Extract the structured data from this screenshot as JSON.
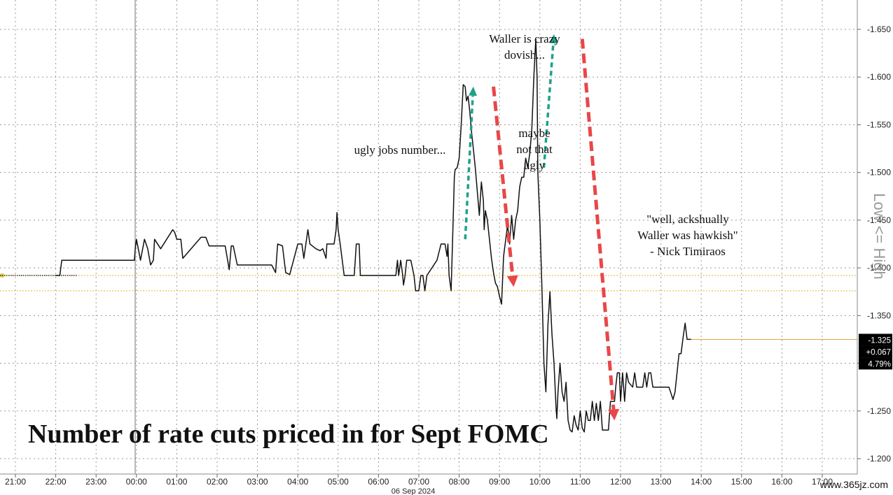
{
  "chart_data": {
    "type": "line",
    "title": "Number of rate cuts priced in for Sept FOMC",
    "date_label": "06 Sep 2024",
    "right_axis_label": "Low <= High",
    "x_ticks": [
      "21:00",
      "22:00",
      "23:00",
      "00:00",
      "01:00",
      "02:00",
      "03:00",
      "04:00",
      "05:00",
      "06:00",
      "07:00",
      "08:00",
      "09:00",
      "10:00",
      "11:00",
      "12:00",
      "13:00",
      "14:00",
      "15:00",
      "16:00",
      "17:00"
    ],
    "y_ticks": [
      "-1.650",
      "-1.600",
      "-1.550",
      "-1.500",
      "-1.450",
      "-1.400",
      "-1.350",
      "-1.300",
      "-1.250",
      "-1.200"
    ],
    "ylim": [
      -1.19,
      -1.665
    ],
    "grid": true,
    "reference_lines": [
      -1.392,
      -1.376
    ],
    "series": [
      {
        "color": "#111111",
        "points": [
          [
            1.0,
            -1.392
          ],
          [
            1.1,
            -1.392
          ],
          [
            1.15,
            -1.408
          ],
          [
            2.95,
            -1.408
          ],
          [
            2.97,
            -1.42
          ],
          [
            3.0,
            -1.43
          ],
          [
            3.1,
            -1.408
          ],
          [
            3.2,
            -1.43
          ],
          [
            3.28,
            -1.42
          ],
          [
            3.35,
            -1.403
          ],
          [
            3.42,
            -1.408
          ],
          [
            3.45,
            -1.43
          ],
          [
            3.6,
            -1.42
          ],
          [
            3.9,
            -1.44
          ],
          [
            3.95,
            -1.437
          ],
          [
            4.0,
            -1.43
          ],
          [
            4.1,
            -1.43
          ],
          [
            4.15,
            -1.41
          ],
          [
            4.6,
            -1.432
          ],
          [
            4.72,
            -1.432
          ],
          [
            4.8,
            -1.423
          ],
          [
            5.2,
            -1.423
          ],
          [
            5.3,
            -1.398
          ],
          [
            5.35,
            -1.423
          ],
          [
            5.4,
            -1.423
          ],
          [
            5.5,
            -1.403
          ],
          [
            6.35,
            -1.403
          ],
          [
            6.45,
            -1.395
          ],
          [
            6.5,
            -1.425
          ],
          [
            6.62,
            -1.423
          ],
          [
            6.7,
            -1.395
          ],
          [
            6.8,
            -1.393
          ],
          [
            7.0,
            -1.425
          ],
          [
            7.1,
            -1.425
          ],
          [
            7.15,
            -1.41
          ],
          [
            7.2,
            -1.425
          ],
          [
            7.25,
            -1.44
          ],
          [
            7.3,
            -1.425
          ],
          [
            7.45,
            -1.42
          ],
          [
            7.55,
            -1.418
          ],
          [
            7.62,
            -1.42
          ],
          [
            7.7,
            -1.41
          ],
          [
            7.72,
            -1.425
          ],
          [
            7.8,
            -1.425
          ],
          [
            7.9,
            -1.425
          ],
          [
            7.95,
            -1.44
          ],
          [
            7.97,
            -1.458
          ],
          [
            8.0,
            -1.44
          ],
          [
            8.05,
            -1.425
          ],
          [
            8.15,
            -1.392
          ],
          [
            8.4,
            -1.392
          ],
          [
            8.45,
            -1.425
          ],
          [
            8.52,
            -1.425
          ],
          [
            8.55,
            -1.392
          ],
          [
            9.0,
            -1.392
          ],
          [
            9.35,
            -1.392
          ],
          [
            9.43,
            -1.392
          ],
          [
            9.47,
            -1.408
          ],
          [
            9.5,
            -1.392
          ],
          [
            9.55,
            -1.408
          ],
          [
            9.6,
            -1.392
          ],
          [
            9.62,
            -1.382
          ],
          [
            9.66,
            -1.392
          ],
          [
            9.7,
            -1.408
          ],
          [
            9.8,
            -1.408
          ],
          [
            9.85,
            -1.398
          ],
          [
            9.88,
            -1.392
          ],
          [
            9.92,
            -1.376
          ],
          [
            10.0,
            -1.376
          ],
          [
            10.05,
            -1.392
          ],
          [
            10.1,
            -1.392
          ],
          [
            10.15,
            -1.376
          ],
          [
            10.2,
            -1.392
          ],
          [
            10.45,
            -1.408
          ],
          [
            10.55,
            -1.425
          ],
          [
            10.65,
            -1.425
          ],
          [
            10.7,
            -1.412
          ],
          [
            10.72,
            -1.425
          ],
          [
            10.75,
            -1.392
          ],
          [
            10.8,
            -1.376
          ],
          [
            10.85,
            -1.45
          ],
          [
            10.88,
            -1.495
          ],
          [
            10.9,
            -1.503
          ],
          [
            10.95,
            -1.505
          ],
          [
            11.0,
            -1.515
          ],
          [
            11.05,
            -1.55
          ],
          [
            11.1,
            -1.592
          ],
          [
            11.15,
            -1.59
          ],
          [
            11.18,
            -1.575
          ],
          [
            11.22,
            -1.58
          ],
          [
            11.26,
            -1.565
          ],
          [
            11.3,
            -1.545
          ],
          [
            11.35,
            -1.525
          ],
          [
            11.4,
            -1.505
          ],
          [
            11.45,
            -1.48
          ],
          [
            11.5,
            -1.455
          ],
          [
            11.55,
            -1.49
          ],
          [
            11.6,
            -1.47
          ],
          [
            11.62,
            -1.44
          ],
          [
            11.65,
            -1.46
          ],
          [
            11.7,
            -1.45
          ],
          [
            11.75,
            -1.43
          ],
          [
            11.8,
            -1.41
          ],
          [
            11.85,
            -1.395
          ],
          [
            11.9,
            -1.384
          ],
          [
            11.95,
            -1.38
          ],
          [
            12.0,
            -1.37
          ],
          [
            12.05,
            -1.362
          ],
          [
            12.1,
            -1.412
          ],
          [
            12.2,
            -1.445
          ],
          [
            12.25,
            -1.425
          ],
          [
            12.3,
            -1.455
          ],
          [
            12.35,
            -1.43
          ],
          [
            12.4,
            -1.45
          ],
          [
            12.45,
            -1.46
          ],
          [
            12.5,
            -1.485
          ],
          [
            12.55,
            -1.495
          ],
          [
            12.6,
            -1.495
          ],
          [
            12.65,
            -1.515
          ],
          [
            12.7,
            -1.505
          ],
          [
            12.75,
            -1.52
          ],
          [
            12.8,
            -1.545
          ],
          [
            12.85,
            -1.6
          ],
          [
            12.9,
            -1.64
          ],
          [
            12.93,
            -1.6
          ],
          [
            12.95,
            -1.5
          ],
          [
            13.0,
            -1.45
          ],
          [
            13.05,
            -1.38
          ],
          [
            13.1,
            -1.3
          ],
          [
            13.15,
            -1.27
          ],
          [
            13.2,
            -1.34
          ],
          [
            13.25,
            -1.375
          ],
          [
            13.3,
            -1.33
          ],
          [
            13.35,
            -1.3
          ],
          [
            13.4,
            -1.255
          ],
          [
            13.42,
            -1.242
          ],
          [
            13.45,
            -1.27
          ],
          [
            13.5,
            -1.3
          ],
          [
            13.55,
            -1.27
          ],
          [
            13.6,
            -1.26
          ],
          [
            13.65,
            -1.28
          ],
          [
            13.7,
            -1.24
          ],
          [
            13.75,
            -1.23
          ],
          [
            13.8,
            -1.228
          ],
          [
            13.85,
            -1.245
          ],
          [
            13.9,
            -1.235
          ],
          [
            13.95,
            -1.23
          ],
          [
            14.0,
            -1.25
          ],
          [
            14.05,
            -1.232
          ],
          [
            14.1,
            -1.228
          ],
          [
            14.15,
            -1.25
          ],
          [
            14.2,
            -1.24
          ],
          [
            14.25,
            -1.24
          ],
          [
            14.3,
            -1.26
          ],
          [
            14.35,
            -1.24
          ],
          [
            14.4,
            -1.258
          ],
          [
            14.45,
            -1.24
          ],
          [
            14.5,
            -1.26
          ],
          [
            14.55,
            -1.23
          ],
          [
            14.7,
            -1.23
          ],
          [
            14.75,
            -1.26
          ],
          [
            14.85,
            -1.26
          ],
          [
            14.88,
            -1.275
          ],
          [
            14.92,
            -1.29
          ],
          [
            14.97,
            -1.29
          ],
          [
            15.0,
            -1.26
          ],
          [
            15.05,
            -1.29
          ],
          [
            15.1,
            -1.26
          ],
          [
            15.15,
            -1.29
          ],
          [
            15.2,
            -1.28
          ],
          [
            15.3,
            -1.275
          ],
          [
            15.35,
            -1.29
          ],
          [
            15.4,
            -1.275
          ],
          [
            15.55,
            -1.275
          ],
          [
            15.6,
            -1.29
          ],
          [
            15.65,
            -1.275
          ],
          [
            15.7,
            -1.29
          ],
          [
            15.75,
            -1.29
          ],
          [
            15.8,
            -1.275
          ],
          [
            16.2,
            -1.275
          ],
          [
            16.3,
            -1.262
          ],
          [
            16.35,
            -1.27
          ],
          [
            16.45,
            -1.31
          ],
          [
            16.5,
            -1.31
          ],
          [
            16.55,
            -1.327
          ],
          [
            16.6,
            -1.342
          ],
          [
            16.65,
            -1.325
          ],
          [
            16.75,
            -1.325
          ]
        ]
      }
    ],
    "last_value": {
      "value": "-1.325",
      "change": "+0.067",
      "pct": "4.79%"
    },
    "annotations": [
      {
        "text": [
          "ugly jobs number..."
        ]
      },
      {
        "text": [
          "maybe",
          "not that",
          "ugly"
        ]
      },
      {
        "text": [
          "Waller is crazy",
          "dovish..."
        ]
      },
      {
        "text": [
          "\"well, ackshually",
          "Waller was hawkish\"",
          "- Nick Timiraos"
        ]
      }
    ],
    "arrows": [
      {
        "direction": "up",
        "color": "#1fa187",
        "from": [
          11.15,
          -1.43
        ],
        "to": [
          11.35,
          -1.59
        ]
      },
      {
        "direction": "down",
        "color": "#e8474a",
        "from": [
          11.85,
          -1.59
        ],
        "to": [
          12.35,
          -1.38
        ]
      },
      {
        "direction": "up",
        "color": "#1fa187",
        "from": [
          13.1,
          -1.505
        ],
        "to": [
          13.35,
          -1.645
        ]
      },
      {
        "direction": "down",
        "color": "#e8474a",
        "from": [
          14.05,
          -1.64
        ],
        "to": [
          14.85,
          -1.24
        ]
      }
    ]
  },
  "watermark": "www.365jz.com",
  "colors": {
    "line": "#111111",
    "reference": "#e3c84a",
    "tag_bg": "#000000",
    "up_arrow": "#1fa187",
    "down_arrow": "#e8474a"
  }
}
